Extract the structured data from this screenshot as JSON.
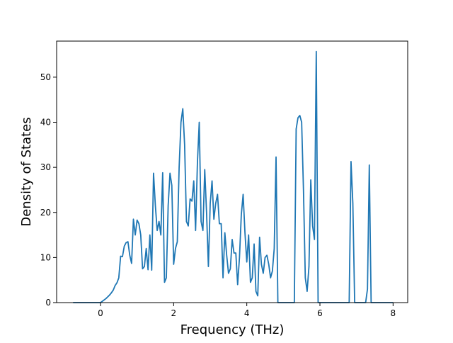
{
  "chart_data": {
    "type": "line",
    "title": "",
    "xlabel": "Frequency (THz)",
    "ylabel": "Density of States",
    "xlim": [
      -1.2,
      8.4
    ],
    "ylim": [
      0,
      58
    ],
    "xticks": [
      0,
      2,
      4,
      6,
      8
    ],
    "yticks": [
      0,
      10,
      20,
      30,
      40,
      50
    ],
    "grid": false,
    "legend": "none",
    "series": [
      {
        "color": "#1f77b4",
        "x": [
          -0.75,
          -0.5,
          -0.25,
          0.0,
          0.05,
          0.1,
          0.15,
          0.2,
          0.25,
          0.3,
          0.35,
          0.4,
          0.45,
          0.5,
          0.55,
          0.6,
          0.65,
          0.7,
          0.75,
          0.8,
          0.85,
          0.9,
          0.95,
          1.0,
          1.05,
          1.1,
          1.15,
          1.2,
          1.25,
          1.3,
          1.35,
          1.4,
          1.45,
          1.5,
          1.55,
          1.6,
          1.65,
          1.7,
          1.75,
          1.8,
          1.85,
          1.9,
          1.95,
          2.0,
          2.05,
          2.1,
          2.15,
          2.2,
          2.25,
          2.3,
          2.35,
          2.4,
          2.45,
          2.5,
          2.55,
          2.6,
          2.65,
          2.7,
          2.75,
          2.8,
          2.85,
          2.9,
          2.95,
          3.0,
          3.05,
          3.1,
          3.15,
          3.2,
          3.25,
          3.3,
          3.35,
          3.4,
          3.45,
          3.5,
          3.55,
          3.6,
          3.65,
          3.7,
          3.75,
          3.8,
          3.85,
          3.9,
          3.95,
          4.0,
          4.05,
          4.1,
          4.15,
          4.2,
          4.25,
          4.3,
          4.35,
          4.4,
          4.45,
          4.5,
          4.55,
          4.6,
          4.65,
          4.7,
          4.75,
          4.8,
          4.85,
          4.9,
          4.95,
          5.0,
          5.05,
          5.1,
          5.15,
          5.2,
          5.25,
          5.3,
          5.35,
          5.4,
          5.45,
          5.5,
          5.55,
          5.6,
          5.65,
          5.7,
          5.75,
          5.8,
          5.85,
          5.9,
          5.95,
          6.0,
          6.05,
          6.1,
          6.15,
          6.2,
          6.25,
          6.3,
          6.35,
          6.4,
          6.45,
          6.5,
          6.55,
          6.6,
          6.65,
          6.7,
          6.75,
          6.8,
          6.85,
          6.9,
          6.95,
          7.0,
          7.05,
          7.1,
          7.15,
          7.2,
          7.25,
          7.3,
          7.35,
          7.4,
          7.45,
          7.5,
          7.55,
          7.6,
          7.65,
          7.7,
          7.75,
          7.8,
          7.85,
          7.9,
          7.95,
          8.0
        ],
        "y": [
          0,
          0,
          0,
          0,
          0.3,
          0.6,
          0.9,
          1.3,
          1.7,
          2.2,
          2.8,
          3.8,
          4.4,
          5.5,
          10.3,
          10.2,
          12.5,
          13.3,
          13.5,
          10.5,
          8.7,
          18.5,
          15.0,
          18.3,
          17.5,
          15.0,
          7.5,
          8.0,
          12.0,
          7.3,
          15.0,
          7.2,
          28.7,
          21.5,
          16.0,
          18.0,
          15.0,
          28.8,
          4.5,
          5.5,
          21.5,
          28.7,
          26.0,
          8.5,
          12.0,
          13.5,
          30.0,
          40.0,
          43.0,
          35.0,
          18.0,
          17.0,
          23.0,
          22.5,
          27.0,
          16.0,
          31.0,
          40.0,
          18.0,
          16.0,
          29.5,
          20.0,
          8.0,
          22.0,
          27.0,
          18.5,
          22.0,
          24.0,
          17.5,
          17.5,
          5.5,
          15.5,
          10.5,
          6.5,
          7.5,
          14.0,
          11.0,
          11.0,
          4.0,
          10.0,
          19.5,
          24.0,
          15.5,
          9.0,
          15.0,
          4.5,
          5.5,
          13.0,
          2.5,
          1.5,
          14.5,
          8.5,
          6.5,
          10.0,
          10.5,
          8.5,
          5.5,
          7.0,
          12.0,
          32.3,
          0,
          0,
          0,
          0,
          0,
          0,
          0,
          0,
          0,
          0,
          38.5,
          41.0,
          41.5,
          40.0,
          25.0,
          5.5,
          2.5,
          8.0,
          27.2,
          17.0,
          14.0,
          55.7,
          0,
          0,
          0,
          0,
          0,
          0,
          0,
          0,
          0,
          0,
          0,
          0,
          0,
          0,
          0,
          0,
          0,
          0,
          31.3,
          22.0,
          0,
          0,
          0,
          0,
          0,
          0,
          0,
          3.0,
          30.5,
          0,
          0,
          0,
          0,
          0,
          0,
          0,
          0,
          0,
          0,
          0,
          0,
          0
        ]
      }
    ]
  }
}
